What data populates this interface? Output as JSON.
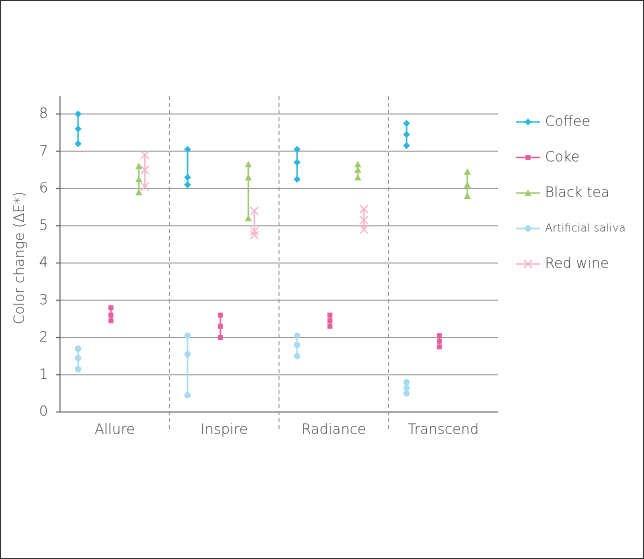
{
  "chart_data": {
    "type": "range",
    "y_label": "Color change (ΔE*)",
    "categories": [
      "Allure",
      "Inspire",
      "Radiance",
      "Transcend"
    ],
    "ylim": [
      0,
      8
    ],
    "yticks": [
      0,
      1,
      2,
      3,
      4,
      5,
      6,
      7,
      8
    ],
    "grid": true,
    "legend": "right",
    "series": [
      {
        "name": "Coffee",
        "color": "#2bb5e0",
        "marker": "diamond",
        "max": [
          8.0,
          7.05,
          7.05,
          7.75
        ],
        "values": [
          7.6,
          6.3,
          6.7,
          7.45
        ],
        "min": [
          7.2,
          6.1,
          6.25,
          7.15
        ]
      },
      {
        "name": "Coke",
        "color": "#e5609c",
        "marker": "square",
        "max": [
          2.8,
          2.6,
          2.6,
          2.05
        ],
        "values": [
          2.6,
          2.3,
          2.45,
          1.9
        ],
        "min": [
          2.45,
          2.0,
          2.3,
          1.75
        ]
      },
      {
        "name": "Black tea",
        "color": "#9ccb6b",
        "marker": "triangle",
        "max": [
          6.6,
          6.65,
          6.65,
          6.45
        ],
        "values": [
          6.25,
          6.3,
          6.5,
          6.1
        ],
        "min": [
          5.9,
          5.2,
          6.3,
          5.8
        ]
      },
      {
        "name": "Artificial saliva",
        "color": "#a6dcef",
        "marker": "circle",
        "max": [
          1.7,
          2.05,
          2.05,
          0.8
        ],
        "values": [
          1.45,
          1.55,
          1.8,
          0.65
        ],
        "min": [
          1.15,
          0.45,
          1.5,
          0.5
        ]
      },
      {
        "name": "Red wine",
        "color": "#f5b4cc",
        "marker": "x",
        "max": [
          6.9,
          5.4,
          5.45,
          null
        ],
        "values": [
          6.5,
          4.85,
          5.15,
          null
        ],
        "min": [
          6.05,
          4.75,
          4.9,
          null
        ]
      }
    ]
  }
}
